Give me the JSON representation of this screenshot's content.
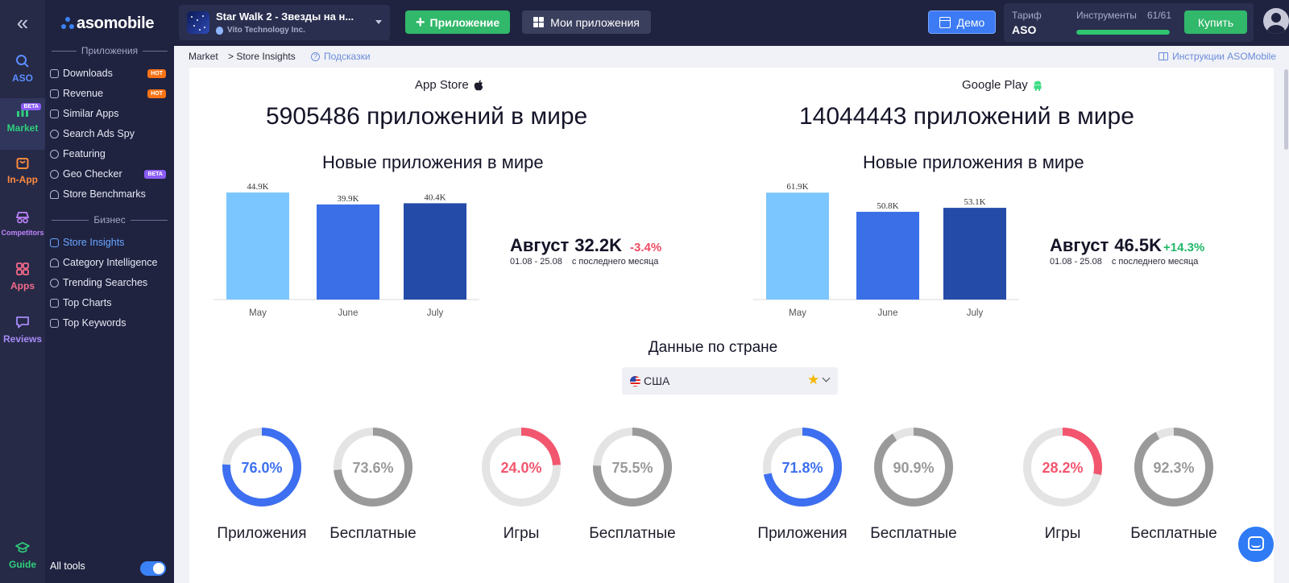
{
  "rail": {
    "items": [
      {
        "label": "ASO",
        "color": "#5b8cff",
        "icon": "search-icon"
      },
      {
        "label": "Market",
        "color": "#2fd07c",
        "icon": "bar-chart-icon",
        "badge": "BETA"
      },
      {
        "label": "In-App",
        "color": "#ff8a3d",
        "icon": "shopping-bag-icon"
      },
      {
        "label": "Competitors",
        "color": "#c084fc",
        "icon": "spy-icon"
      },
      {
        "label": "Apps",
        "color": "#f46a8a",
        "icon": "apps-grid-icon"
      },
      {
        "label": "Reviews",
        "color": "#a78bfa",
        "icon": "chat-bubble-icon"
      },
      {
        "label": "Guide",
        "color": "#2fd07c",
        "icon": "graduation-cap-icon"
      }
    ]
  },
  "sidebar": {
    "logo": "asomobile",
    "section_apps": "Приложения",
    "section_business": "Бизнес",
    "items": [
      {
        "label": "Downloads",
        "badge": "HOT"
      },
      {
        "label": "Revenue",
        "badge": "HOT"
      },
      {
        "label": "Similar Apps"
      },
      {
        "label": "Search Ads Spy"
      },
      {
        "label": "Featuring"
      },
      {
        "label": "Geo Checker",
        "badge": "BETA"
      },
      {
        "label": "Store Benchmarks"
      }
    ],
    "business_items": [
      {
        "label": "Store Insights",
        "active": true
      },
      {
        "label": "Category Intelligence"
      },
      {
        "label": "Trending Searches"
      },
      {
        "label": "Top Charts"
      },
      {
        "label": "Top Keywords"
      }
    ],
    "all_tools": "All tools"
  },
  "topbar": {
    "app_title": "Star Walk 2 - Звезды на н...",
    "app_developer": "Vito Technology Inc.",
    "add_app": "Приложение",
    "my_apps": "Мои приложения",
    "demo": "Демо",
    "tariff_label": "Тариф",
    "tariff_value": "ASO",
    "tools_label": "Инструменты",
    "tools_count": "61/61",
    "tools_progress": 1.0,
    "buy": "Купить"
  },
  "breadcrumb": {
    "root": "Market",
    "current": "> Store Insights",
    "hints": "Подсказки",
    "instructions": "Инструкции ASOMobile"
  },
  "stores": [
    {
      "name": "App Store",
      "icon": "apple-icon",
      "count_text": "5905486 приложений в мире",
      "new_title": "Новые приложения в мире",
      "month": "Август",
      "month_value": "32.2K",
      "delta": "-3.4%",
      "period": "01.08 - 25.08",
      "delta_caption": "с последнего месяца"
    },
    {
      "name": "Google Play",
      "icon": "android-icon",
      "count_text": "14044443 приложений в мире",
      "new_title": "Новые приложения в мире",
      "month": "Август",
      "month_value": "46.5K",
      "delta": "+14.3%",
      "period": "01.08 - 25.08",
      "delta_caption": "с последнего месяца"
    }
  ],
  "country": {
    "title": "Данные по стране",
    "selected": "США"
  },
  "donuts": [
    {
      "value": 76.0,
      "text": "76.0%",
      "label": "Приложения",
      "color": "#3d6ff0"
    },
    {
      "value": 73.6,
      "text": "73.6%",
      "label": "Бесплатные",
      "color": "#9a9a9a"
    },
    {
      "value": 24.0,
      "text": "24.0%",
      "label": "Игры",
      "color": "#f2566e"
    },
    {
      "value": 75.5,
      "text": "75.5%",
      "label": "Бесплатные",
      "color": "#9a9a9a"
    },
    {
      "value": 71.8,
      "text": "71.8%",
      "label": "Приложения",
      "color": "#3d6ff0"
    },
    {
      "value": 90.9,
      "text": "90.9%",
      "label": "Бесплатные",
      "color": "#9a9a9a"
    },
    {
      "value": 28.2,
      "text": "28.2%",
      "label": "Игры",
      "color": "#f2566e"
    },
    {
      "value": 92.3,
      "text": "92.3%",
      "label": "Бесплатные",
      "color": "#9a9a9a"
    }
  ],
  "chart_data": [
    {
      "type": "bar",
      "categories": [
        "May",
        "June",
        "July"
      ],
      "values": [
        44.9,
        39.9,
        40.4
      ],
      "value_labels": [
        "44.9K",
        "39.9K",
        "40.4K"
      ],
      "colors": [
        "#7cc6ff",
        "#3a6fe8",
        "#244ba8"
      ],
      "ylim": [
        0,
        50
      ],
      "title": "Новые приложения в мире"
    },
    {
      "type": "bar",
      "categories": [
        "May",
        "June",
        "July"
      ],
      "values": [
        61.9,
        50.8,
        53.1
      ],
      "value_labels": [
        "61.9K",
        "50.8K",
        "53.1K"
      ],
      "colors": [
        "#7cc6ff",
        "#3a6fe8",
        "#244ba8"
      ],
      "ylim": [
        0,
        69
      ],
      "title": "Новые приложения в мире"
    }
  ]
}
